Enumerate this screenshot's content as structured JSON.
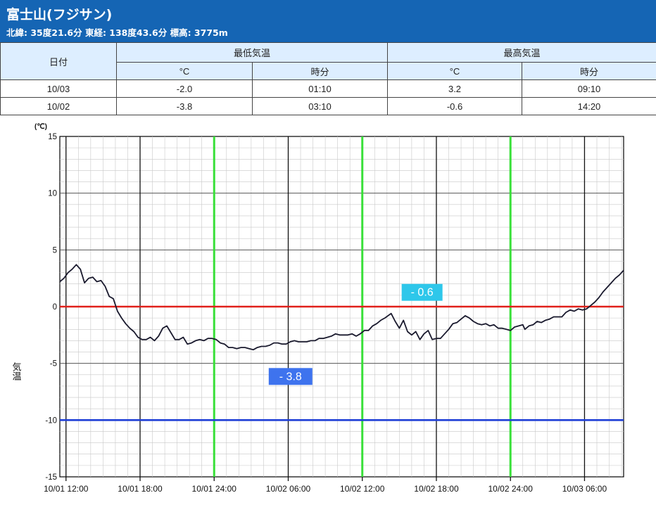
{
  "station": {
    "name": "富士山(フジサン)",
    "coords": "北緯: 35度21.6分 東経: 138度43.6分 標高: 3775m"
  },
  "table": {
    "date_header": "日付",
    "min_header": "最低気温",
    "max_header": "最高気温",
    "unit_header": "°C",
    "time_header": "時分",
    "rows": [
      {
        "date": "10/03",
        "min": "-2.0",
        "min_time": "01:10",
        "max": "3.2",
        "max_time": "09:10"
      },
      {
        "date": "10/02",
        "min": "-3.8",
        "min_time": "03:10",
        "max": "-0.6",
        "max_time": "14:20"
      }
    ]
  },
  "colors": {
    "header_bg": "#1565b4",
    "zero_line": "#e0201a",
    "minus10_line": "#1f3fd6",
    "day_line": "#39e039",
    "series": "#1a1a2e",
    "min_label_bg": "#3e73ee",
    "max_label_bg": "#2ec7ea"
  },
  "chart_data": {
    "type": "line",
    "ylabel": "気温",
    "yunit": "(℃)",
    "ylim": [
      -15,
      15
    ],
    "yticks": [
      15,
      10,
      5,
      0,
      -5,
      -10,
      -15
    ],
    "xlim": [
      "10/01 11:30",
      "10/03 09:10"
    ],
    "xticks": [
      {
        "time": "10/01 12:00",
        "label": "10/01 12:00"
      },
      {
        "time": "10/01 18:00",
        "label": "10/01 18:00"
      },
      {
        "time": "10/02 00:00",
        "label": "10/01 24:00"
      },
      {
        "time": "10/02 06:00",
        "label": "10/02 06:00"
      },
      {
        "time": "10/02 12:00",
        "label": "10/02 12:00"
      },
      {
        "time": "10/02 18:00",
        "label": "10/02 18:00"
      },
      {
        "time": "10/03 00:00",
        "label": "10/02 24:00"
      },
      {
        "time": "10/03 06:00",
        "label": "10/03 06:00"
      }
    ],
    "grid": true,
    "reference_lines": [
      {
        "y": 0,
        "color": "#e0201a"
      },
      {
        "y": -10,
        "color": "#1f3fd6"
      }
    ],
    "day_markers": [
      "10/02 00:00",
      "10/02 12:00",
      "10/03 00:00"
    ],
    "annotations": [
      {
        "label": "- 3.8",
        "time": "10/02 03:10",
        "value": -3.8,
        "kind": "min"
      },
      {
        "label": "- 0.6",
        "time": "10/02 14:20",
        "value": -0.6,
        "kind": "max"
      }
    ],
    "series": [
      {
        "points": [
          [
            "10/01 11:30",
            2.2
          ],
          [
            "10/01 11:50",
            2.5
          ],
          [
            "10/01 12:10",
            3.0
          ],
          [
            "10/01 12:30",
            3.3
          ],
          [
            "10/01 12:50",
            3.7
          ],
          [
            "10/01 13:10",
            3.3
          ],
          [
            "10/01 13:30",
            2.1
          ],
          [
            "10/01 13:50",
            2.5
          ],
          [
            "10/01 14:10",
            2.6
          ],
          [
            "10/01 14:30",
            2.2
          ],
          [
            "10/01 14:50",
            2.3
          ],
          [
            "10/01 15:10",
            1.8
          ],
          [
            "10/01 15:30",
            0.9
          ],
          [
            "10/01 15:50",
            0.7
          ],
          [
            "10/01 16:10",
            -0.4
          ],
          [
            "10/01 16:30",
            -1.0
          ],
          [
            "10/01 16:50",
            -1.5
          ],
          [
            "10/01 17:10",
            -1.9
          ],
          [
            "10/01 17:30",
            -2.2
          ],
          [
            "10/01 17:50",
            -2.7
          ],
          [
            "10/01 18:10",
            -2.9
          ],
          [
            "10/01 18:30",
            -2.9
          ],
          [
            "10/01 18:50",
            -2.7
          ],
          [
            "10/01 19:10",
            -3.0
          ],
          [
            "10/01 19:30",
            -2.6
          ],
          [
            "10/01 19:50",
            -1.9
          ],
          [
            "10/01 20:10",
            -1.7
          ],
          [
            "10/01 20:30",
            -2.3
          ],
          [
            "10/01 20:50",
            -2.9
          ],
          [
            "10/01 21:10",
            -2.9
          ],
          [
            "10/01 21:30",
            -2.7
          ],
          [
            "10/01 21:50",
            -3.3
          ],
          [
            "10/01 22:10",
            -3.2
          ],
          [
            "10/01 22:30",
            -3.0
          ],
          [
            "10/01 22:50",
            -2.9
          ],
          [
            "10/01 23:10",
            -3.0
          ],
          [
            "10/01 23:30",
            -2.8
          ],
          [
            "10/01 23:50",
            -2.8
          ],
          [
            "10/02 00:10",
            -2.9
          ],
          [
            "10/02 00:30",
            -3.2
          ],
          [
            "10/02 00:50",
            -3.3
          ],
          [
            "10/02 01:10",
            -3.6
          ],
          [
            "10/02 01:30",
            -3.6
          ],
          [
            "10/02 01:50",
            -3.7
          ],
          [
            "10/02 02:10",
            -3.6
          ],
          [
            "10/02 02:30",
            -3.6
          ],
          [
            "10/02 02:50",
            -3.7
          ],
          [
            "10/02 03:10",
            -3.8
          ],
          [
            "10/02 03:30",
            -3.6
          ],
          [
            "10/02 03:50",
            -3.5
          ],
          [
            "10/02 04:10",
            -3.5
          ],
          [
            "10/02 04:30",
            -3.4
          ],
          [
            "10/02 04:50",
            -3.2
          ],
          [
            "10/02 05:10",
            -3.2
          ],
          [
            "10/02 05:30",
            -3.3
          ],
          [
            "10/02 05:50",
            -3.3
          ],
          [
            "10/02 06:10",
            -3.1
          ],
          [
            "10/02 06:30",
            -3.0
          ],
          [
            "10/02 06:50",
            -3.1
          ],
          [
            "10/02 07:10",
            -3.1
          ],
          [
            "10/02 07:30",
            -3.1
          ],
          [
            "10/02 07:50",
            -3.0
          ],
          [
            "10/02 08:10",
            -3.0
          ],
          [
            "10/02 08:30",
            -2.8
          ],
          [
            "10/02 08:50",
            -2.8
          ],
          [
            "10/02 09:10",
            -2.7
          ],
          [
            "10/02 09:30",
            -2.6
          ],
          [
            "10/02 09:50",
            -2.4
          ],
          [
            "10/02 10:10",
            -2.5
          ],
          [
            "10/02 10:30",
            -2.5
          ],
          [
            "10/02 10:50",
            -2.5
          ],
          [
            "10/02 11:10",
            -2.4
          ],
          [
            "10/02 11:30",
            -2.6
          ],
          [
            "10/02 11:50",
            -2.4
          ],
          [
            "10/02 12:10",
            -2.1
          ],
          [
            "10/02 12:30",
            -2.1
          ],
          [
            "10/02 12:50",
            -1.7
          ],
          [
            "10/02 13:10",
            -1.5
          ],
          [
            "10/02 13:30",
            -1.2
          ],
          [
            "10/02 13:50",
            -1.0
          ],
          [
            "10/02 14:20",
            -0.6
          ],
          [
            "10/02 14:40",
            -1.3
          ],
          [
            "10/02 15:00",
            -1.9
          ],
          [
            "10/02 15:20",
            -1.2
          ],
          [
            "10/02 15:40",
            -2.2
          ],
          [
            "10/02 16:00",
            -2.5
          ],
          [
            "10/02 16:20",
            -2.2
          ],
          [
            "10/02 16:40",
            -2.9
          ],
          [
            "10/02 17:00",
            -2.4
          ],
          [
            "10/02 17:20",
            -2.1
          ],
          [
            "10/02 17:40",
            -2.9
          ],
          [
            "10/02 18:00",
            -2.8
          ],
          [
            "10/02 18:20",
            -2.8
          ],
          [
            "10/02 18:40",
            -2.4
          ],
          [
            "10/02 19:00",
            -2.0
          ],
          [
            "10/02 19:20",
            -1.5
          ],
          [
            "10/02 19:40",
            -1.4
          ],
          [
            "10/02 20:00",
            -1.1
          ],
          [
            "10/02 20:20",
            -0.8
          ],
          [
            "10/02 20:40",
            -1.0
          ],
          [
            "10/02 21:00",
            -1.3
          ],
          [
            "10/02 21:20",
            -1.5
          ],
          [
            "10/02 21:40",
            -1.6
          ],
          [
            "10/02 22:00",
            -1.5
          ],
          [
            "10/02 22:20",
            -1.7
          ],
          [
            "10/02 22:40",
            -1.6
          ],
          [
            "10/02 23:00",
            -1.9
          ],
          [
            "10/02 23:20",
            -1.9
          ],
          [
            "10/02 23:40",
            -2.0
          ],
          [
            "10/03 00:00",
            -2.1
          ],
          [
            "10/03 00:20",
            -1.8
          ],
          [
            "10/03 00:40",
            -1.7
          ],
          [
            "10/03 01:00",
            -1.6
          ],
          [
            "10/03 01:10",
            -2.0
          ],
          [
            "10/03 01:30",
            -1.7
          ],
          [
            "10/03 01:50",
            -1.6
          ],
          [
            "10/03 02:10",
            -1.3
          ],
          [
            "10/03 02:30",
            -1.4
          ],
          [
            "10/03 02:50",
            -1.2
          ],
          [
            "10/03 03:10",
            -1.1
          ],
          [
            "10/03 03:30",
            -0.9
          ],
          [
            "10/03 03:50",
            -0.9
          ],
          [
            "10/03 04:10",
            -0.9
          ],
          [
            "10/03 04:30",
            -0.5
          ],
          [
            "10/03 04:50",
            -0.3
          ],
          [
            "10/03 05:10",
            -0.4
          ],
          [
            "10/03 05:30",
            -0.2
          ],
          [
            "10/03 05:50",
            -0.3
          ],
          [
            "10/03 06:10",
            -0.2
          ],
          [
            "10/03 06:30",
            0.1
          ],
          [
            "10/03 06:50",
            0.4
          ],
          [
            "10/03 07:10",
            0.8
          ],
          [
            "10/03 07:30",
            1.3
          ],
          [
            "10/03 07:50",
            1.7
          ],
          [
            "10/03 08:10",
            2.1
          ],
          [
            "10/03 08:30",
            2.5
          ],
          [
            "10/03 08:50",
            2.8
          ],
          [
            "10/03 09:10",
            3.2
          ]
        ]
      }
    ]
  }
}
